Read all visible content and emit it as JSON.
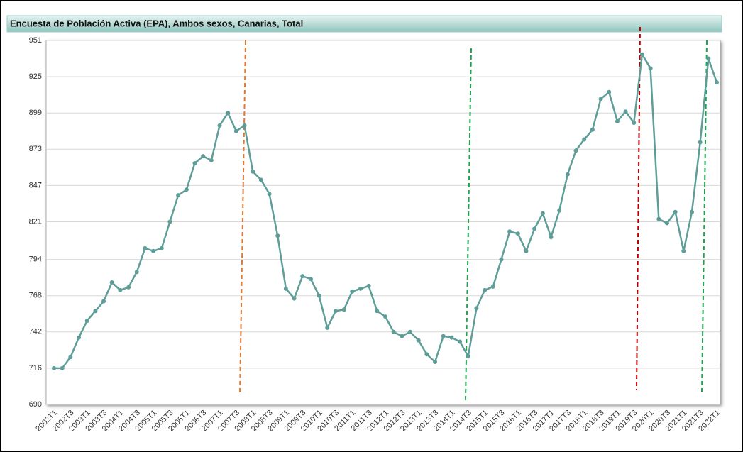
{
  "chart_data": {
    "type": "line",
    "title": "Encuesta de Población Activa (EPA), Ambos sexos, Canarias, Total",
    "categories": [
      "2002T1",
      null,
      "2002T3",
      null,
      "2003T1",
      null,
      "2003T3",
      null,
      "2004T1",
      null,
      "2004T3",
      null,
      "2005T1",
      null,
      "2005T3",
      null,
      "2006T1",
      null,
      "2006T3",
      null,
      "2007T1",
      null,
      "2007T3",
      null,
      "2008T1",
      null,
      "2008T3",
      null,
      "2009T1",
      null,
      "2009T3",
      null,
      "2010T1",
      null,
      "2010T3",
      null,
      "2011T1",
      null,
      "2011T3",
      null,
      "2012T1",
      null,
      "2012T3",
      null,
      "2013T1",
      null,
      "2013T3",
      null,
      "2014T1",
      null,
      "2014T3",
      null,
      "2015T1",
      null,
      "2015T3",
      null,
      "2016T1",
      null,
      "2016T3",
      null,
      "2017T1",
      null,
      "2017T3",
      null,
      "2018T1",
      null,
      "2018T3",
      null,
      "2019T1",
      null,
      "2019T3",
      null,
      "2020T1",
      null,
      "2020T3",
      null,
      "2021T1",
      null,
      "2021T3",
      null,
      "2022T1"
    ],
    "series": [
      {
        "name": "Total",
        "color": "#5f9e98",
        "values": [
          716,
          716,
          724,
          738,
          750,
          757,
          764,
          777.5,
          772,
          774,
          785,
          802,
          800,
          802,
          821,
          840,
          844,
          863,
          868,
          865,
          890,
          899,
          886,
          890,
          857,
          851,
          841,
          811,
          773,
          766,
          782,
          780,
          768,
          745,
          757,
          758,
          771,
          773,
          775,
          757,
          753,
          742,
          739,
          742,
          736,
          726,
          720.5,
          739,
          738,
          735,
          724.5,
          759,
          772,
          774.5,
          794,
          814,
          812.5,
          800,
          816,
          827,
          810,
          829,
          855,
          872,
          880,
          887,
          909,
          914,
          893,
          900,
          892,
          941,
          931,
          823,
          820,
          828,
          800,
          828,
          878,
          938,
          921
        ]
      }
    ],
    "ylim": [
      690,
      951
    ],
    "yticks": [
      690,
      716,
      742,
      768,
      794,
      821,
      847,
      873,
      899,
      925,
      951
    ],
    "grid": true
  }
}
